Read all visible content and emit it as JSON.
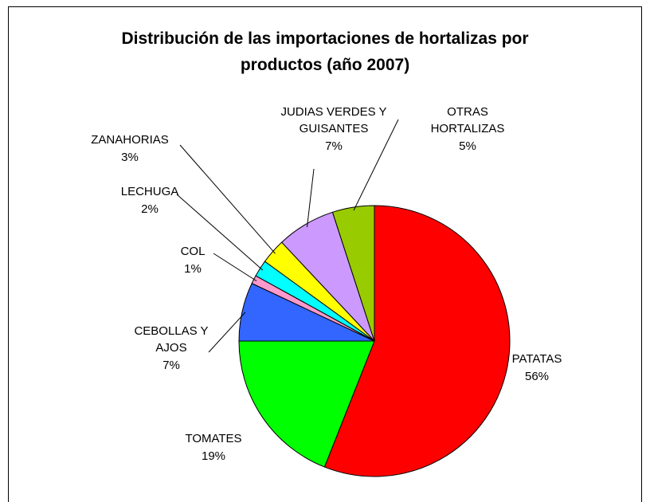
{
  "chart_data": {
    "type": "pie",
    "title": "Distribución de las importaciones de hortalizas por productos (año 2007)",
    "categories": [
      "PATATAS",
      "TOMATES",
      "CEBOLLAS Y AJOS",
      "COL",
      "LECHUGA",
      "ZANAHORIAS",
      "JUDIAS VERDES Y GUISANTES",
      "OTRAS HORTALIZAS"
    ],
    "values": [
      56,
      19,
      7,
      1,
      2,
      3,
      7,
      5
    ],
    "value_labels": [
      "56%",
      "19%",
      "7%",
      "1%",
      "2%",
      "3%",
      "7%",
      "5%"
    ],
    "colors": [
      "#ff0000",
      "#00ff00",
      "#3366ff",
      "#ff99cc",
      "#00ffff",
      "#ffff00",
      "#cc99ff",
      "#99cc00"
    ]
  }
}
